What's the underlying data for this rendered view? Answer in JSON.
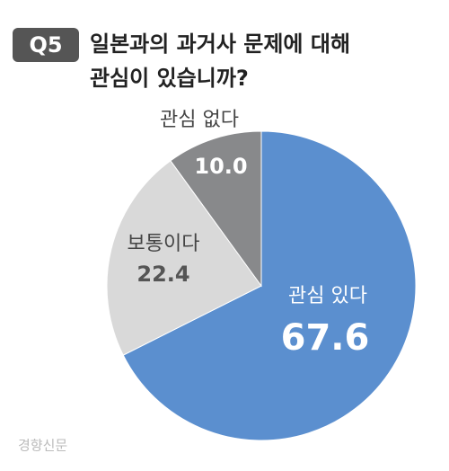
{
  "badge": "Q5",
  "chart_data": {
    "type": "pie",
    "title": [
      "일본과의 과거사 문제에 대해",
      "관심이 있습니까?"
    ],
    "categories": [
      "관심 있다",
      "보통이다",
      "관심 없다"
    ],
    "values": [
      67.6,
      22.4,
      10
    ],
    "value_labels": [
      "67.6",
      "22.4",
      "10.0"
    ],
    "colors": [
      "#5b8fcf",
      "#d9d9d9",
      "#88898b"
    ]
  },
  "watermark": "경향신문"
}
